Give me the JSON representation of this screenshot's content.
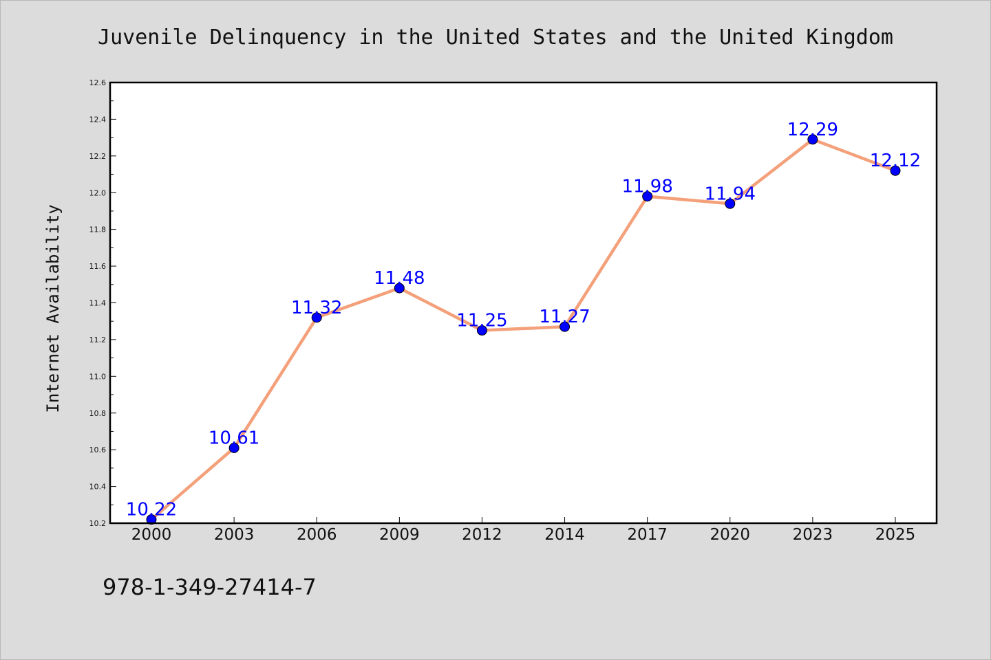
{
  "chart_data": {
    "type": "line",
    "title": "Juvenile Delinquency in the United States and the United Kingdom",
    "xlabel": "",
    "ylabel": "Internet Availability",
    "categories": [
      "2000",
      "2003",
      "2006",
      "2009",
      "2012",
      "2014",
      "2017",
      "2020",
      "2023",
      "2025"
    ],
    "series": [
      {
        "values": [
          10.22,
          10.61,
          11.32,
          11.48,
          11.25,
          11.27,
          11.98,
          11.94,
          12.29,
          12.12
        ],
        "data_labels": [
          "10.22",
          "10.61",
          "11.32",
          "11.48",
          "11.25",
          "11.27",
          "11.98",
          "11.94",
          "12.29",
          "12.12"
        ],
        "line_color": "#f4a07a",
        "marker_color": "#0000ff"
      }
    ],
    "ylim": [
      10.2,
      12.6
    ],
    "yticks": [
      "10.2",
      "10.4",
      "10.6",
      "10.8",
      "11.0",
      "11.2",
      "11.4",
      "11.6",
      "11.8",
      "12.0",
      "12.2",
      "12.4",
      "12.6"
    ],
    "grid": false,
    "legend": "none"
  },
  "footer_text": "978-1-349-27414-7",
  "colors": {
    "background": "#dcdcdc",
    "plot_background": "#ffffff",
    "axis": "#000000"
  }
}
